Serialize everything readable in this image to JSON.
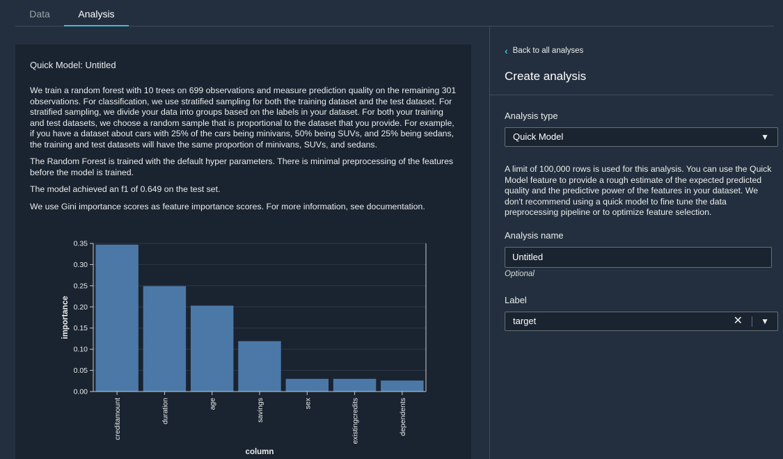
{
  "tabs": [
    {
      "label": "Data",
      "active": false
    },
    {
      "label": "Analysis",
      "active": true
    }
  ],
  "left": {
    "title": "Quick Model: Untitled",
    "paragraphs": [
      "We train a random forest with 10 trees on 699 observations and measure prediction quality on the remaining 301 observations. For classification, we use stratified sampling for both the training dataset and the test dataset. For stratified sampling, we divide your data into groups based on the labels in your dataset. For both your training and test datasets, we choose a random sample that is proportional to the dataset that you provide. For example, if you have a dataset about cars with 25% of the cars being minivans, 50% being SUVs, and 25% being sedans, the training and test datasets will have the same proportion of minivans, SUVs, and sedans.",
      "The Random Forest is trained with the default hyper parameters. There is minimal preprocessing of the features before the model is trained.",
      "The model achieved an f1 of 0.649 on the test set.",
      "We use Gini importance scores as feature importance scores. For more information, see documentation."
    ]
  },
  "chart_data": {
    "type": "bar",
    "categories": [
      "creditamount",
      "duration",
      "age",
      "savings",
      "sex",
      "existingcredits",
      "dependents"
    ],
    "values": [
      0.347,
      0.249,
      0.203,
      0.119,
      0.03,
      0.03,
      0.026
    ],
    "xlabel": "column",
    "ylabel": "importance",
    "ylim": [
      0,
      0.35
    ],
    "yticks": [
      "0.00",
      "0.05",
      "0.10",
      "0.15",
      "0.20",
      "0.25",
      "0.30",
      "0.35"
    ],
    "grid": true,
    "bar_color": "#4c78a8"
  },
  "right": {
    "back_label": "Back to all analyses",
    "heading": "Create analysis",
    "analysis_type_label": "Analysis type",
    "analysis_type_value": "Quick Model",
    "info": "A limit of 100,000 rows is used for this analysis. You can use the Quick Model feature to provide a rough estimate of the expected predicted quality and the predictive power of the features in your dataset. We don't recommend using a quick model to fine tune the data preprocessing pipeline or to optimize feature selection.",
    "analysis_name_label": "Analysis name",
    "analysis_name_value": "Untitled",
    "optional_label": "Optional",
    "label_label": "Label",
    "label_value": "target"
  },
  "icons": {
    "back": "chevron-left-icon",
    "dropdown": "caret-down-icon",
    "clear": "close-icon"
  },
  "colors": {
    "accent": "#44b9d6",
    "background": "#232f3e",
    "panel": "#1a2330"
  }
}
